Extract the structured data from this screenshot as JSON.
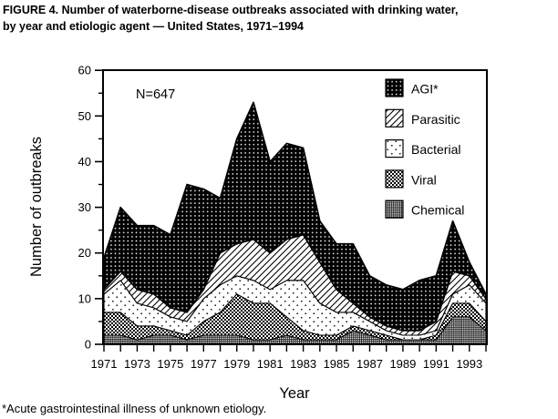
{
  "title": {
    "line1": "FIGURE 4. Number of waterborne-disease outbreaks associated with drinking water,",
    "line2": "by year and etiologic agent — United States, 1971–1994"
  },
  "annotation": {
    "n_label": "N=647",
    "n_value": 647
  },
  "footnote": "*Acute gastrointestinal illness of unknown etiology.",
  "colors": {
    "ink": "#000000",
    "paper": "#ffffff"
  },
  "chart_data": {
    "type": "area",
    "stacked": true,
    "title": "FIGURE 4. Number of waterborne-disease outbreaks associated with drinking water, by year and etiologic agent — United States, 1971–1994",
    "xlabel": "Year",
    "ylabel": "Number of outbreaks",
    "total_label": "N=647",
    "x": [
      1971,
      1972,
      1973,
      1974,
      1975,
      1976,
      1977,
      1978,
      1979,
      1980,
      1981,
      1982,
      1983,
      1984,
      1985,
      1986,
      1987,
      1988,
      1989,
      1990,
      1991,
      1992,
      1993,
      1994
    ],
    "x_tick_labels": [
      "1971",
      "1973",
      "1975",
      "1977",
      "1979",
      "1981",
      "1983",
      "1985",
      "1987",
      "1989",
      "1991",
      "1993"
    ],
    "y_ticks": [
      0,
      10,
      20,
      30,
      40,
      50,
      60
    ],
    "y_minor_ticks": [
      5,
      15,
      25,
      35,
      45,
      55
    ],
    "ylim": [
      0,
      60
    ],
    "grid": false,
    "legend_position": "inside-top-right",
    "legend_order_top_to_bottom": [
      "AGI*",
      "Parasitic",
      "Bacterial",
      "Viral",
      "Chemical"
    ],
    "stack_order_bottom_to_top": [
      "Chemical",
      "Viral",
      "Bacterial",
      "Parasitic",
      "AGI*"
    ],
    "series": [
      {
        "name": "Chemical",
        "pattern": "chemical",
        "values": [
          2,
          2,
          1,
          2,
          2,
          1,
          2,
          2,
          2,
          1,
          1,
          2,
          1,
          1,
          1,
          3,
          2,
          1,
          1,
          1,
          1,
          6,
          6,
          3
        ]
      },
      {
        "name": "Viral",
        "pattern": "viral",
        "values": [
          5,
          5,
          3,
          2,
          1,
          1,
          3,
          5,
          9,
          8,
          8,
          4,
          2,
          1,
          1,
          1,
          1,
          1,
          0,
          0,
          1,
          3,
          3,
          2
        ]
      },
      {
        "name": "Bacterial",
        "pattern": "bacterial",
        "values": [
          4,
          7,
          5,
          4,
          3,
          3,
          5,
          6,
          4,
          5,
          3,
          8,
          11,
          7,
          5,
          3,
          2,
          1,
          1,
          1,
          1,
          2,
          4,
          4
        ]
      },
      {
        "name": "Parasitic",
        "pattern": "parasitic",
        "values": [
          1,
          2,
          3,
          3,
          2,
          2,
          2,
          7,
          7,
          9,
          8,
          9,
          10,
          9,
          5,
          2,
          1,
          1,
          1,
          1,
          2,
          5,
          2,
          1
        ]
      },
      {
        "name": "AGI*",
        "pattern": "agi",
        "values": [
          7,
          14,
          14,
          15,
          16,
          28,
          22,
          12,
          23,
          30,
          20,
          21,
          19,
          9,
          10,
          13,
          9,
          9,
          9,
          11,
          10,
          11,
          3,
          1
        ]
      }
    ],
    "totals": [
      19,
      30,
      26,
      26,
      24,
      35,
      34,
      32,
      45,
      53,
      40,
      44,
      43,
      27,
      22,
      22,
      15,
      13,
      12,
      14,
      15,
      27,
      18,
      11
    ]
  }
}
